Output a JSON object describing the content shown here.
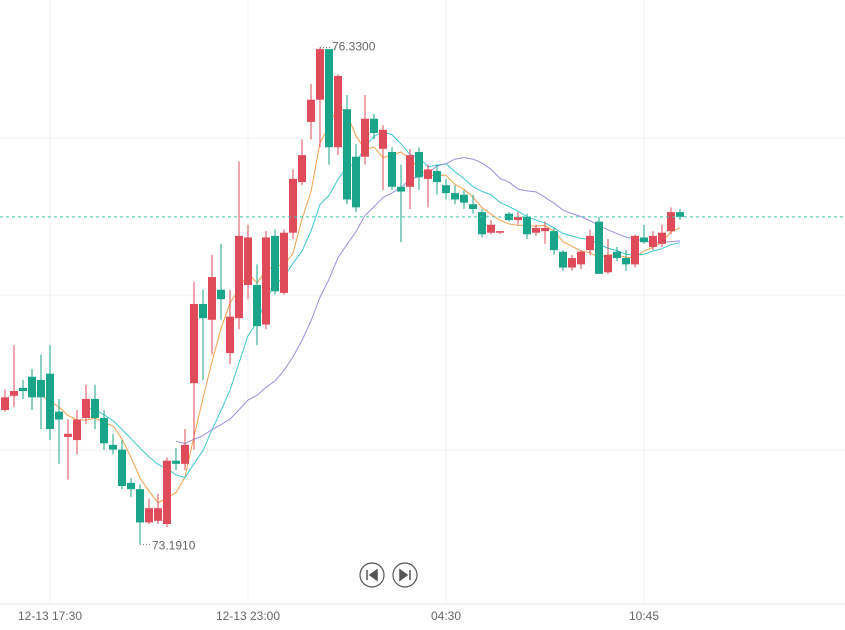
{
  "chart_data": {
    "type": "candlestick",
    "categories": [
      null,
      null,
      null,
      null,
      null,
      "12-13 17:30",
      null,
      null,
      null,
      null,
      null,
      null,
      null,
      null,
      null,
      null,
      null,
      null,
      null,
      null,
      null,
      null,
      null,
      null,
      null,
      null,
      null,
      "12-13 23:00",
      null,
      null,
      null,
      null,
      null,
      null,
      null,
      null,
      null,
      null,
      null,
      null,
      null,
      null,
      null,
      null,
      null,
      null,
      null,
      null,
      null,
      "04:30",
      null,
      null,
      null,
      null,
      null,
      null,
      null,
      null,
      null,
      null,
      null,
      null,
      null,
      null,
      null,
      null,
      null,
      null,
      null,
      null,
      null,
      "10:45",
      null,
      null,
      null,
      null
    ],
    "open": [
      74.04,
      74.13,
      74.18,
      74.25,
      74.23,
      74.27,
      74.03,
      73.87,
      73.85,
      73.99,
      74.11,
      73.99,
      73.82,
      73.79,
      73.58,
      73.54,
      73.33,
      73.34,
      73.32,
      73.72,
      73.7,
      74.21,
      74.71,
      74.61,
      74.8,
      74.4,
      74.62,
      74.83,
      74.83,
      74.58,
      75.14,
      74.78,
      75.16,
      75.48,
      75.86,
      76.0,
      76.32,
      75.7,
      75.94,
      75.64,
      75.64,
      75.88,
      75.69,
      75.67,
      75.45,
      75.45,
      75.67,
      75.5,
      75.55,
      75.46,
      75.41,
      75.4,
      75.34,
      75.29,
      75.16,
      75.16,
      75.28,
      75.24,
      75.26,
      75.16,
      75.17,
      75.17,
      75.04,
      74.94,
      74.96,
      75.05,
      75.23,
      74.91,
      75.04,
      75.0,
      74.96,
      75.13,
      75.07,
      75.09,
      75.17,
      75.29
    ],
    "high": [
      74.17,
      74.45,
      74.23,
      74.3,
      74.39,
      74.45,
      74.11,
      73.98,
      74.04,
      74.2,
      74.2,
      74.04,
      73.89,
      73.85,
      73.61,
      73.57,
      73.48,
      73.51,
      73.74,
      73.8,
      73.92,
      74.85,
      74.8,
      75.02,
      75.09,
      74.8,
      75.61,
      75.21,
      74.96,
      75.17,
      75.18,
      75.18,
      75.56,
      75.75,
      76.1,
      76.33,
      76.3,
      76.16,
      76.03,
      75.72,
      76.03,
      75.91,
      75.84,
      75.7,
      75.59,
      75.69,
      75.7,
      75.59,
      75.59,
      75.5,
      75.46,
      75.43,
      75.4,
      75.31,
      75.24,
      75.17,
      75.29,
      75.29,
      75.28,
      75.21,
      75.23,
      75.19,
      75.05,
      75.02,
      75.05,
      75.18,
      75.26,
      75.12,
      75.07,
      75.05,
      75.15,
      75.21,
      75.17,
      75.21,
      75.32,
      75.31
    ],
    "low": [
      74.03,
      74.06,
      74.11,
      74.04,
      73.92,
      73.85,
      73.7,
      73.6,
      73.76,
      73.95,
      73.92,
      73.79,
      73.76,
      73.54,
      73.49,
      73.191,
      73.32,
      73.32,
      73.3,
      73.66,
      73.66,
      73.79,
      74.23,
      74.39,
      74.61,
      74.33,
      74.55,
      74.74,
      74.45,
      74.55,
      74.77,
      74.77,
      75.12,
      75.46,
      75.75,
      75.7,
      75.59,
      75.65,
      75.34,
      75.29,
      75.59,
      75.75,
      75.43,
      75.43,
      75.1,
      75.31,
      75.43,
      75.32,
      75.4,
      75.37,
      75.34,
      75.31,
      75.28,
      75.13,
      75.15,
      75.15,
      75.23,
      75.21,
      75.12,
      75.14,
      75.09,
      75.02,
      74.92,
      74.92,
      74.93,
      75.02,
      74.9,
      74.9,
      74.98,
      74.92,
      74.94,
      75.09,
      75.05,
      75.07,
      75.15,
      75.24
    ],
    "close": [
      74.12,
      74.16,
      74.16,
      74.12,
      74.12,
      73.92,
      73.98,
      73.89,
      73.98,
      74.11,
      73.99,
      73.83,
      73.79,
      73.56,
      73.54,
      73.33,
      73.42,
      73.42,
      73.72,
      73.7,
      73.82,
      74.71,
      74.62,
      74.88,
      74.74,
      74.63,
      75.14,
      75.13,
      74.57,
      75.13,
      74.79,
      75.16,
      75.5,
      75.65,
      76.0,
      76.32,
      75.7,
      76.15,
      75.37,
      75.32,
      75.88,
      75.79,
      75.81,
      75.45,
      75.42,
      75.65,
      75.51,
      75.56,
      75.48,
      75.41,
      75.37,
      75.35,
      75.31,
      75.15,
      75.21,
      75.17,
      75.24,
      75.26,
      75.15,
      75.19,
      75.19,
      75.05,
      74.94,
      75.0,
      75.04,
      75.14,
      74.9,
      75.02,
      75.0,
      74.96,
      75.14,
      75.1,
      75.14,
      75.16,
      75.29,
      75.26
    ],
    "up_color": "#e04b5a",
    "down_color": "#1aa58a",
    "moving_averages": [
      {
        "period": 5,
        "color": "#f5a04a"
      },
      {
        "period": 10,
        "color": "#3cc8d0"
      },
      {
        "period": 20,
        "color": "#9b8fe0"
      }
    ],
    "high_label": "76.3300",
    "low_label": "73.1910",
    "ylim": [
      72.84,
      76.63
    ],
    "grid": true
  }
}
